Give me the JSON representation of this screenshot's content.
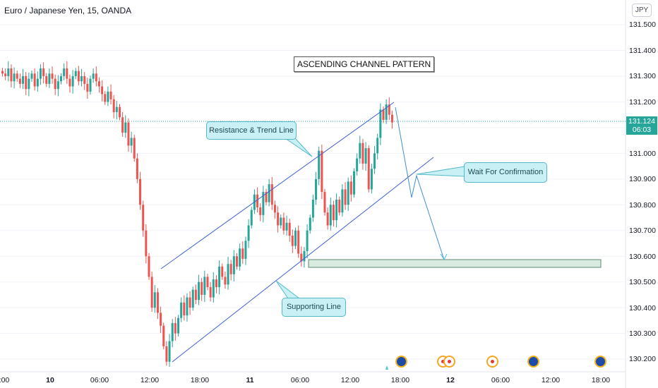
{
  "header": {
    "symbol": "Euro / Japanese Yen, 15, OANDA",
    "currency_button": "JPY"
  },
  "price_axis": {
    "ticks": [
      "131.500",
      "131.400",
      "131.300",
      "131.200",
      "131.100",
      "131.000",
      "130.900",
      "130.800",
      "130.700",
      "130.600",
      "130.500",
      "130.400",
      "130.300",
      "130.200"
    ],
    "last_price": "131.124",
    "countdown": "06:03"
  },
  "time_axis": {
    "ticks": [
      ":00",
      "10",
      "06:00",
      "12:00",
      "18:00",
      "11",
      "06:00",
      "12:00",
      "18:00",
      "12",
      "06:00",
      "12:00",
      "18:00"
    ]
  },
  "annotations": {
    "title": "ASCENDING CHANNEL PATTERN",
    "resistance": "Resistance & Trend Line",
    "support": "Supporting Line",
    "confirmation": "Wait For Confirmation"
  },
  "colors": {
    "up": "#26a69a",
    "down": "#ef5350",
    "channel": "#3f5fd4",
    "projection": "#4fc3d9",
    "badge": "#26a69a"
  },
  "chart_data": {
    "type": "candlestick",
    "title": "ASCENDING CHANNEL PATTERN",
    "symbol": "EURJPY",
    "timeframe": "15",
    "ylim": [
      130.15,
      131.55
    ],
    "last_price": 131.124,
    "closes": [
      131.31,
      131.3,
      131.33,
      131.28,
      131.31,
      131.29,
      131.27,
      131.3,
      131.25,
      131.29,
      131.31,
      131.26,
      131.29,
      131.33,
      131.3,
      131.27,
      131.31,
      131.29,
      131.25,
      131.28,
      131.3,
      131.33,
      131.29,
      131.26,
      131.3,
      131.32,
      131.28,
      131.3,
      131.27,
      131.24,
      131.29,
      131.31,
      131.28,
      131.26,
      131.23,
      131.2,
      131.24,
      131.21,
      131.16,
      131.18,
      131.14,
      131.08,
      131.12,
      131.03,
      131.06,
      130.98,
      130.9,
      130.8,
      130.7,
      130.6,
      130.52,
      130.4,
      130.46,
      130.38,
      130.33,
      130.25,
      130.19,
      130.27,
      130.34,
      130.3,
      130.36,
      130.42,
      130.37,
      130.44,
      130.4,
      130.47,
      130.43,
      130.5,
      130.45,
      130.52,
      130.48,
      130.44,
      130.51,
      130.48,
      130.56,
      130.52,
      130.49,
      130.57,
      130.53,
      130.6,
      130.56,
      130.63,
      130.59,
      130.66,
      130.72,
      130.78,
      130.84,
      130.79,
      130.76,
      130.85,
      130.81,
      130.88,
      130.8,
      130.77,
      130.72,
      130.75,
      130.7,
      130.73,
      130.68,
      130.64,
      130.7,
      130.61,
      130.58,
      130.62,
      130.7,
      130.75,
      130.82,
      130.9,
      131.01,
      130.85,
      130.77,
      130.72,
      130.8,
      130.74,
      130.82,
      130.77,
      130.86,
      130.8,
      130.89,
      130.84,
      130.93,
      130.98,
      131.04,
      130.96,
      131.02,
      130.86,
      130.94,
      131.0,
      131.06,
      131.17,
      131.13,
      131.19,
      131.15,
      131.12
    ]
  }
}
